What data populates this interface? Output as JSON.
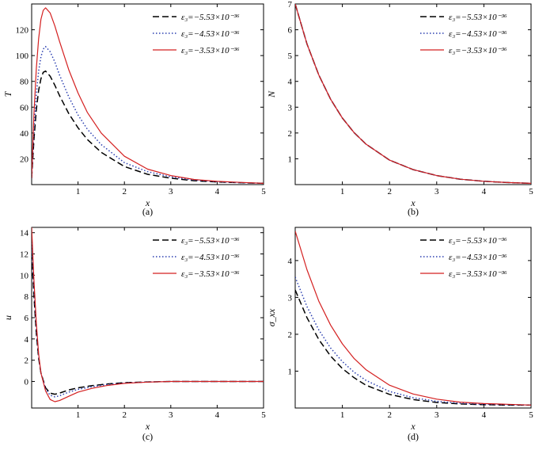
{
  "chart_data": [
    {
      "type": "line",
      "panel_label": "(a)",
      "xlabel": "x",
      "ylabel": "T",
      "xlim": [
        0,
        5
      ],
      "ylim": [
        0,
        140
      ],
      "xticks": [
        1,
        2,
        3,
        4,
        5
      ],
      "yticks": [
        20,
        40,
        60,
        80,
        100,
        120
      ],
      "legend_position": "top-right",
      "series": [
        {
          "name": "ε₃=−5.53×10⁻³⁶",
          "color": "#000000",
          "style": "dashed",
          "x": [
            0,
            0.05,
            0.1,
            0.15,
            0.2,
            0.25,
            0.3,
            0.4,
            0.5,
            0.6,
            0.8,
            1.0,
            1.2,
            1.5,
            2.0,
            2.5,
            3.0,
            3.5,
            4.0,
            4.5,
            5.0
          ],
          "y": [
            5,
            35,
            58,
            73,
            82,
            87,
            88,
            84,
            77,
            69,
            55,
            44,
            35,
            25,
            14,
            8,
            5,
            3,
            2,
            1.5,
            1
          ]
        },
        {
          "name": "ε₃=−4.53×10⁻³⁶",
          "color": "#2b3fb0",
          "style": "dotted",
          "x": [
            0,
            0.05,
            0.1,
            0.15,
            0.2,
            0.25,
            0.3,
            0.4,
            0.5,
            0.6,
            0.8,
            1.0,
            1.2,
            1.5,
            2.0,
            2.5,
            3.0,
            3.5,
            4.0,
            4.5,
            5.0
          ],
          "y": [
            5,
            42,
            70,
            88,
            99,
            105,
            107,
            103,
            95,
            85,
            68,
            54,
            43,
            31,
            17,
            10,
            6,
            3.5,
            2.2,
            1.5,
            1
          ]
        },
        {
          "name": "ε₃=−3.53×10⁻³⁶",
          "color": "#d42020",
          "style": "solid",
          "x": [
            0,
            0.05,
            0.1,
            0.15,
            0.2,
            0.25,
            0.3,
            0.4,
            0.5,
            0.6,
            0.8,
            1.0,
            1.2,
            1.5,
            2.0,
            2.5,
            3.0,
            3.5,
            4.0,
            4.5,
            5.0
          ],
          "y": [
            5,
            55,
            90,
            113,
            128,
            135,
            137,
            133,
            123,
            111,
            89,
            71,
            56,
            40,
            22,
            12,
            7,
            4,
            2.5,
            1.7,
            1
          ]
        }
      ]
    },
    {
      "type": "line",
      "panel_label": "(b)",
      "xlabel": "x",
      "ylabel": "N",
      "xlim": [
        0,
        5
      ],
      "ylim": [
        0,
        7
      ],
      "xticks": [
        1,
        2,
        3,
        4,
        5
      ],
      "yticks": [
        1,
        2,
        3,
        4,
        5,
        6,
        7
      ],
      "legend_position": "top-right",
      "series": [
        {
          "name": "ε₃=−5.53×10⁻³⁶",
          "color": "#000000",
          "style": "dashed",
          "x": [
            0,
            0.25,
            0.5,
            0.75,
            1.0,
            1.25,
            1.5,
            2.0,
            2.5,
            3.0,
            3.5,
            4.0,
            4.5,
            5.0
          ],
          "y": [
            7,
            5.45,
            4.25,
            3.31,
            2.58,
            2.01,
            1.57,
            0.95,
            0.58,
            0.35,
            0.21,
            0.13,
            0.08,
            0.05
          ]
        },
        {
          "name": "ε₃=−4.53×10⁻³⁶",
          "color": "#2b3fb0",
          "style": "dotted",
          "x": [
            0,
            0.25,
            0.5,
            0.75,
            1.0,
            1.25,
            1.5,
            2.0,
            2.5,
            3.0,
            3.5,
            4.0,
            4.5,
            5.0
          ],
          "y": [
            7,
            5.45,
            4.25,
            3.31,
            2.58,
            2.01,
            1.57,
            0.95,
            0.58,
            0.35,
            0.21,
            0.13,
            0.08,
            0.05
          ]
        },
        {
          "name": "ε₃=−3.53×10⁻³⁶",
          "color": "#d42020",
          "style": "solid",
          "x": [
            0,
            0.25,
            0.5,
            0.75,
            1.0,
            1.25,
            1.5,
            2.0,
            2.5,
            3.0,
            3.5,
            4.0,
            4.5,
            5.0
          ],
          "y": [
            7,
            5.45,
            4.25,
            3.31,
            2.58,
            2.01,
            1.57,
            0.95,
            0.58,
            0.35,
            0.21,
            0.13,
            0.08,
            0.05
          ]
        }
      ]
    },
    {
      "type": "line",
      "panel_label": "(c)",
      "xlabel": "x",
      "ylabel": "u",
      "xlim": [
        0,
        5
      ],
      "ylim": [
        -2.5,
        14.5
      ],
      "xticks": [
        1,
        2,
        3,
        4,
        5
      ],
      "yticks": [
        0,
        2,
        4,
        6,
        8,
        10,
        12,
        14
      ],
      "legend_position": "top-right",
      "series": [
        {
          "name": "ε₃=−5.53×10⁻³⁶",
          "color": "#000000",
          "style": "dashed",
          "x": [
            0,
            0.05,
            0.1,
            0.15,
            0.2,
            0.3,
            0.4,
            0.5,
            0.6,
            0.8,
            1.0,
            1.3,
            1.6,
            2.0,
            2.5,
            3.0,
            4.0,
            5.0
          ],
          "y": [
            12,
            8,
            4.5,
            2.2,
            0.8,
            -0.6,
            -1.1,
            -1.2,
            -1.1,
            -0.8,
            -0.6,
            -0.4,
            -0.25,
            -0.12,
            -0.05,
            0,
            0,
            0
          ]
        },
        {
          "name": "ε₃=−4.53×10⁻³⁶",
          "color": "#2b3fb0",
          "style": "dotted",
          "x": [
            0,
            0.05,
            0.1,
            0.15,
            0.2,
            0.3,
            0.4,
            0.5,
            0.6,
            0.8,
            1.0,
            1.3,
            1.6,
            2.0,
            2.5,
            3.0,
            4.0,
            5.0
          ],
          "y": [
            13,
            8.8,
            5,
            2.4,
            0.8,
            -0.7,
            -1.3,
            -1.45,
            -1.35,
            -1.0,
            -0.75,
            -0.5,
            -0.3,
            -0.15,
            -0.05,
            0,
            0,
            0
          ]
        },
        {
          "name": "ε₃=−3.53×10⁻³⁶",
          "color": "#d42020",
          "style": "solid",
          "x": [
            0,
            0.05,
            0.1,
            0.15,
            0.2,
            0.3,
            0.4,
            0.5,
            0.6,
            0.8,
            1.0,
            1.3,
            1.6,
            2.0,
            2.5,
            3.0,
            4.0,
            5.0
          ],
          "y": [
            14.5,
            9.5,
            5.5,
            2.6,
            0.8,
            -0.9,
            -1.7,
            -1.9,
            -1.8,
            -1.4,
            -1.0,
            -0.65,
            -0.4,
            -0.18,
            -0.06,
            0,
            0,
            0
          ]
        }
      ]
    },
    {
      "type": "line",
      "panel_label": "(d)",
      "xlabel": "x",
      "ylabel": "σ_xx",
      "xlim": [
        0,
        5
      ],
      "ylim": [
        0,
        4.9
      ],
      "xticks": [
        1,
        2,
        3,
        4,
        5
      ],
      "yticks": [
        1,
        2,
        3,
        4
      ],
      "legend_position": "top-right",
      "series": [
        {
          "name": "ε₃=−5.53×10⁻³⁶",
          "color": "#000000",
          "style": "dashed",
          "x": [
            0,
            0.25,
            0.5,
            0.75,
            1.0,
            1.25,
            1.5,
            2.0,
            2.5,
            3.0,
            3.5,
            4.0,
            4.5,
            5.0
          ],
          "y": [
            3.2,
            2.45,
            1.86,
            1.41,
            1.07,
            0.82,
            0.62,
            0.37,
            0.23,
            0.15,
            0.11,
            0.09,
            0.08,
            0.08
          ]
        },
        {
          "name": "ε₃=−4.53×10⁻³⁶",
          "color": "#2b3fb0",
          "style": "dotted",
          "x": [
            0,
            0.25,
            0.5,
            0.75,
            1.0,
            1.25,
            1.5,
            2.0,
            2.5,
            3.0,
            3.5,
            4.0,
            4.5,
            5.0
          ],
          "y": [
            3.55,
            2.75,
            2.12,
            1.63,
            1.26,
            0.97,
            0.75,
            0.45,
            0.28,
            0.18,
            0.13,
            0.1,
            0.09,
            0.08
          ]
        },
        {
          "name": "ε₃=−3.53×10⁻³⁶",
          "color": "#d42020",
          "style": "solid",
          "x": [
            0,
            0.25,
            0.5,
            0.75,
            1.0,
            1.25,
            1.5,
            2.0,
            2.5,
            3.0,
            3.5,
            4.0,
            4.5,
            5.0
          ],
          "y": [
            4.8,
            3.75,
            2.9,
            2.25,
            1.74,
            1.34,
            1.04,
            0.62,
            0.38,
            0.24,
            0.16,
            0.12,
            0.1,
            0.08
          ]
        }
      ]
    }
  ]
}
